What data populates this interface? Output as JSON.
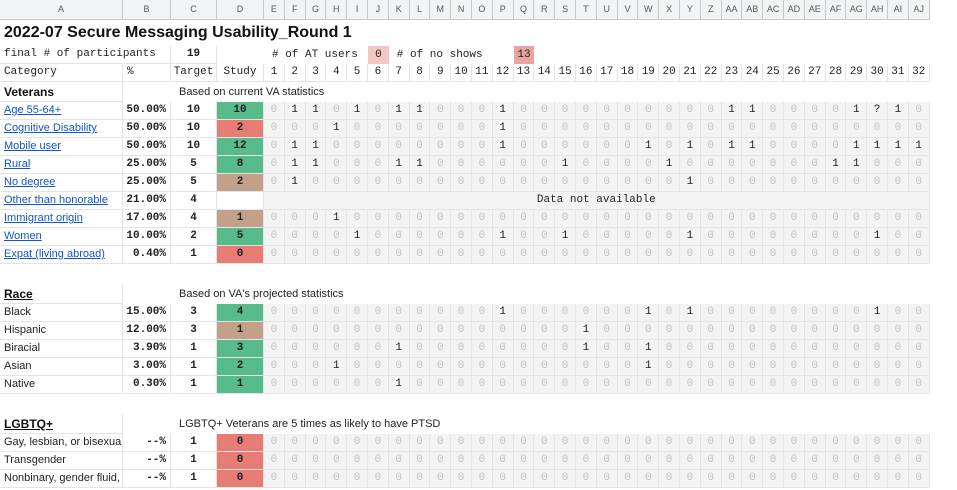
{
  "columns": [
    "A",
    "B",
    "C",
    "D",
    "E",
    "F",
    "G",
    "H",
    "I",
    "J",
    "K",
    "L",
    "M",
    "N",
    "O",
    "P",
    "Q",
    "R",
    "S",
    "T",
    "U",
    "V",
    "W",
    "X",
    "Y",
    "Z",
    "AA",
    "AB",
    "AC",
    "AD",
    "AE",
    "AF",
    "AG",
    "AH",
    "AI",
    "AJ"
  ],
  "title": "2022-07 Secure Messaging Usability_Round 1",
  "summary": {
    "participants_label": "final # of participants",
    "participants_value": "19",
    "at_users_label": "# of AT users",
    "at_users_value": "0",
    "no_shows_label": "# of no shows",
    "no_shows_value": "13"
  },
  "header_row": {
    "category": "Category",
    "pct": "%",
    "target": "Target",
    "study": "Study",
    "sessions": [
      "1",
      "2",
      "3",
      "4",
      "5",
      "6",
      "7",
      "8",
      "9",
      "10",
      "11",
      "12",
      "13",
      "14",
      "15",
      "16",
      "17",
      "18",
      "19",
      "20",
      "21",
      "22",
      "23",
      "24",
      "25",
      "26",
      "27",
      "28",
      "29",
      "30",
      "31",
      "32"
    ]
  },
  "colors": {
    "study_green": "#57bb8a",
    "study_brown": "#c3a08a",
    "study_red": "#e67c73",
    "at_pink": "#f4c7c3",
    "noshow_red": "#e8a59f",
    "grey_band": "#f3f3f3"
  },
  "sections": [
    {
      "title": "Veterans",
      "title_is_link": false,
      "note": "Based on current VA statistics",
      "rows": [
        {
          "label": "Age 55-64+",
          "link": true,
          "pct": "50.00%",
          "target": "10",
          "study": "10",
          "status": "green",
          "values": [
            "0",
            "1",
            "1",
            "0",
            "1",
            "0",
            "1",
            "1",
            "0",
            "0",
            "0",
            "1",
            "0",
            "0",
            "0",
            "0",
            "0",
            "0",
            "0",
            "0",
            "0",
            "0",
            "1",
            "1",
            "0",
            "0",
            "0",
            "0",
            "1",
            "?",
            "1",
            "0"
          ]
        },
        {
          "label": "Cognitive Disability",
          "link": true,
          "pct": "50.00%",
          "target": "10",
          "study": "2",
          "status": "red",
          "values": [
            "0",
            "0",
            "0",
            "1",
            "0",
            "0",
            "0",
            "0",
            "0",
            "0",
            "0",
            "1",
            "0",
            "0",
            "0",
            "0",
            "0",
            "0",
            "0",
            "0",
            "0",
            "0",
            "0",
            "0",
            "0",
            "0",
            "0",
            "0",
            "0",
            "0",
            "0",
            "0"
          ]
        },
        {
          "label": "Mobile user",
          "link": true,
          "pct": "50.00%",
          "target": "10",
          "study": "12",
          "status": "green",
          "values": [
            "0",
            "1",
            "1",
            "0",
            "0",
            "0",
            "0",
            "0",
            "0",
            "0",
            "0",
            "1",
            "0",
            "0",
            "0",
            "0",
            "0",
            "0",
            "1",
            "0",
            "1",
            "0",
            "1",
            "1",
            "0",
            "0",
            "0",
            "0",
            "1",
            "1",
            "1",
            "1"
          ]
        },
        {
          "label": "Rural",
          "link": true,
          "pct": "25.00%",
          "target": "5",
          "study": "8",
          "status": "green",
          "values": [
            "0",
            "1",
            "1",
            "0",
            "0",
            "0",
            "1",
            "1",
            "0",
            "0",
            "0",
            "0",
            "0",
            "0",
            "1",
            "0",
            "0",
            "0",
            "0",
            "1",
            "0",
            "0",
            "0",
            "0",
            "0",
            "0",
            "0",
            "1",
            "1",
            "0",
            "0",
            "0"
          ]
        },
        {
          "label": "No degree",
          "link": true,
          "pct": "25.00%",
          "target": "5",
          "study": "2",
          "status": "brown",
          "values": [
            "0",
            "1",
            "0",
            "0",
            "0",
            "0",
            "0",
            "0",
            "0",
            "0",
            "0",
            "0",
            "0",
            "0",
            "0",
            "0",
            "0",
            "0",
            "0",
            "0",
            "1",
            "0",
            "0",
            "0",
            "0",
            "0",
            "0",
            "0",
            "0",
            "0",
            "0",
            "0"
          ]
        },
        {
          "label": "Other than honorable",
          "link": true,
          "pct": "21.00%",
          "target": "4",
          "study": "",
          "status": "none",
          "na": "Data not available",
          "values": []
        },
        {
          "label": "Immigrant origin",
          "link": true,
          "pct": "17.00%",
          "target": "4",
          "study": "1",
          "status": "brown",
          "values": [
            "0",
            "0",
            "0",
            "1",
            "0",
            "0",
            "0",
            "0",
            "0",
            "0",
            "0",
            "0",
            "0",
            "0",
            "0",
            "0",
            "0",
            "0",
            "0",
            "0",
            "0",
            "0",
            "0",
            "0",
            "0",
            "0",
            "0",
            "0",
            "0",
            "0",
            "0",
            "0"
          ]
        },
        {
          "label": "Women",
          "link": true,
          "pct": "10.00%",
          "target": "2",
          "study": "5",
          "status": "green",
          "values": [
            "0",
            "0",
            "0",
            "0",
            "1",
            "0",
            "0",
            "0",
            "0",
            "0",
            "0",
            "1",
            "0",
            "0",
            "1",
            "0",
            "0",
            "0",
            "0",
            "0",
            "1",
            "0",
            "0",
            "0",
            "0",
            "0",
            "0",
            "0",
            "0",
            "1",
            "0",
            "0"
          ]
        },
        {
          "label": "Expat (living abroad)",
          "link": true,
          "pct": "0.40%",
          "target": "1",
          "study": "0",
          "status": "red",
          "values": [
            "0",
            "0",
            "0",
            "0",
            "0",
            "0",
            "0",
            "0",
            "0",
            "0",
            "0",
            "0",
            "0",
            "0",
            "0",
            "0",
            "0",
            "0",
            "0",
            "0",
            "0",
            "0",
            "0",
            "0",
            "0",
            "0",
            "0",
            "0",
            "0",
            "0",
            "0",
            "0"
          ]
        }
      ]
    },
    {
      "title": "Race",
      "title_is_link": true,
      "note": "Based on VA's projected statistics",
      "rows": [
        {
          "label": "Black",
          "link": false,
          "pct": "15.00%",
          "target": "3",
          "study": "4",
          "status": "green",
          "values": [
            "0",
            "0",
            "0",
            "0",
            "0",
            "0",
            "0",
            "0",
            "0",
            "0",
            "0",
            "1",
            "0",
            "0",
            "0",
            "0",
            "0",
            "0",
            "1",
            "0",
            "1",
            "0",
            "0",
            "0",
            "0",
            "0",
            "0",
            "0",
            "0",
            "1",
            "0",
            "0"
          ]
        },
        {
          "label": "Hispanic",
          "link": false,
          "pct": "12.00%",
          "target": "3",
          "study": "1",
          "status": "brown",
          "values": [
            "0",
            "0",
            "0",
            "0",
            "0",
            "0",
            "0",
            "0",
            "0",
            "0",
            "0",
            "0",
            "0",
            "0",
            "0",
            "1",
            "0",
            "0",
            "0",
            "0",
            "0",
            "0",
            "0",
            "0",
            "0",
            "0",
            "0",
            "0",
            "0",
            "0",
            "0",
            "0"
          ]
        },
        {
          "label": "Biracial",
          "link": false,
          "pct": "3.90%",
          "target": "1",
          "study": "3",
          "status": "green",
          "values": [
            "0",
            "0",
            "0",
            "0",
            "0",
            "0",
            "1",
            "0",
            "0",
            "0",
            "0",
            "0",
            "0",
            "0",
            "0",
            "1",
            "0",
            "0",
            "1",
            "0",
            "0",
            "0",
            "0",
            "0",
            "0",
            "0",
            "0",
            "0",
            "0",
            "0",
            "0",
            "0"
          ]
        },
        {
          "label": "Asian",
          "link": false,
          "pct": "3.00%",
          "target": "1",
          "study": "2",
          "status": "green",
          "values": [
            "0",
            "0",
            "0",
            "1",
            "0",
            "0",
            "0",
            "0",
            "0",
            "0",
            "0",
            "0",
            "0",
            "0",
            "0",
            "0",
            "0",
            "0",
            "1",
            "0",
            "0",
            "0",
            "0",
            "0",
            "0",
            "0",
            "0",
            "0",
            "0",
            "0",
            "0",
            "0"
          ]
        },
        {
          "label": "Native",
          "link": false,
          "pct": "0.30%",
          "target": "1",
          "study": "1",
          "status": "green",
          "values": [
            "0",
            "0",
            "0",
            "0",
            "0",
            "0",
            "1",
            "0",
            "0",
            "0",
            "0",
            "0",
            "0",
            "0",
            "0",
            "0",
            "0",
            "0",
            "0",
            "0",
            "0",
            "0",
            "0",
            "0",
            "0",
            "0",
            "0",
            "0",
            "0",
            "0",
            "0",
            "0"
          ]
        }
      ]
    },
    {
      "title": "LGBTQ+",
      "title_is_link": true,
      "note": "LGBTQ+ Veterans are 5 times as likely to have PTSD",
      "rows": [
        {
          "label": "Gay, lesbian, or bisexual",
          "link": false,
          "pct": "--%",
          "target": "1",
          "study": "0",
          "status": "red",
          "values": [
            "0",
            "0",
            "0",
            "0",
            "0",
            "0",
            "0",
            "0",
            "0",
            "0",
            "0",
            "0",
            "0",
            "0",
            "0",
            "0",
            "0",
            "0",
            "0",
            "0",
            "0",
            "0",
            "0",
            "0",
            "0",
            "0",
            "0",
            "0",
            "0",
            "0",
            "0",
            "0"
          ]
        },
        {
          "label": "Transgender",
          "link": false,
          "pct": "--%",
          "target": "1",
          "study": "0",
          "status": "red",
          "values": [
            "0",
            "0",
            "0",
            "0",
            "0",
            "0",
            "0",
            "0",
            "0",
            "0",
            "0",
            "0",
            "0",
            "0",
            "0",
            "0",
            "0",
            "0",
            "0",
            "0",
            "0",
            "0",
            "0",
            "0",
            "0",
            "0",
            "0",
            "0",
            "0",
            "0",
            "0",
            "0"
          ]
        },
        {
          "label": "Nonbinary, gender fluid, gen",
          "link": false,
          "pct": "--%",
          "target": "1",
          "study": "0",
          "status": "red",
          "values": [
            "0",
            "0",
            "0",
            "0",
            "0",
            "0",
            "0",
            "0",
            "0",
            "0",
            "0",
            "0",
            "0",
            "0",
            "0",
            "0",
            "0",
            "0",
            "0",
            "0",
            "0",
            "0",
            "0",
            "0",
            "0",
            "0",
            "0",
            "0",
            "0",
            "0",
            "0",
            "0"
          ]
        }
      ]
    }
  ]
}
